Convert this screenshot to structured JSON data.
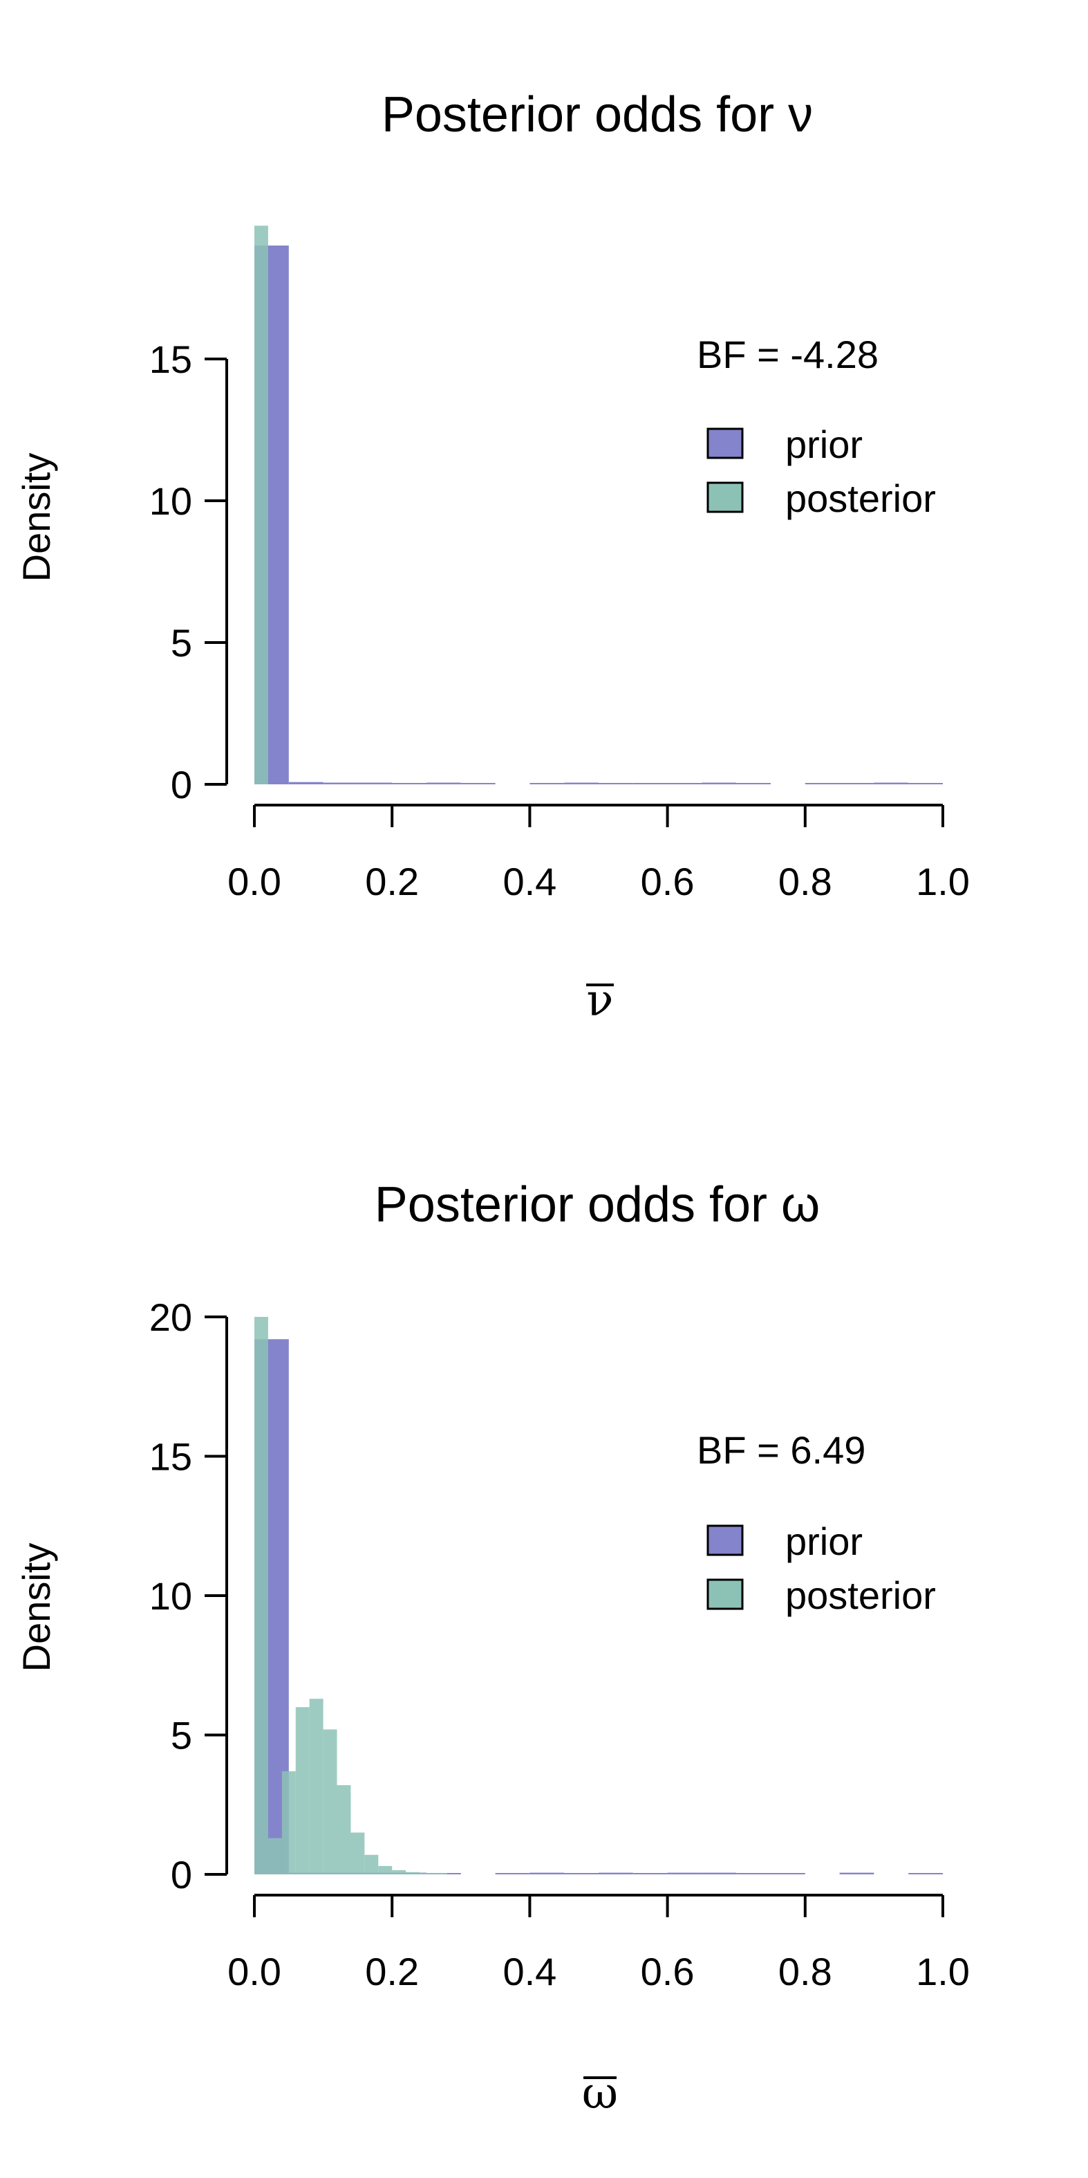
{
  "colors": {
    "prior": "#8484CC",
    "posterior": "#8CC2B6",
    "axis": "#000000"
  },
  "chart_data": [
    {
      "type": "bar",
      "title": "Posterior odds for ν",
      "ylabel": "Density",
      "xlabel": "ν",
      "xlabel_overline": true,
      "xlim": [
        0,
        1
      ],
      "ylim": [
        0,
        19.6
      ],
      "xticks": [
        0.0,
        0.2,
        0.4,
        0.6,
        0.8,
        1.0
      ],
      "xtick_labels": [
        "0.0",
        "0.2",
        "0.4",
        "0.6",
        "0.8",
        "1.0"
      ],
      "yticks": [
        0,
        5,
        10,
        15
      ],
      "ytick_labels": [
        "0",
        "5",
        "10",
        "15"
      ],
      "annotation": "BF = -4.28",
      "legend": [
        "prior",
        "posterior"
      ],
      "legend_position": "top-right",
      "bin_width": 0.05,
      "series": [
        {
          "name": "prior",
          "bins": [
            {
              "x0": 0.0,
              "x1": 0.05,
              "y": 19.0
            },
            {
              "x0": 0.05,
              "x1": 0.1,
              "y": 0.08
            },
            {
              "x0": 0.1,
              "x1": 0.15,
              "y": 0.06
            },
            {
              "x0": 0.15,
              "x1": 0.2,
              "y": 0.06
            },
            {
              "x0": 0.2,
              "x1": 0.25,
              "y": 0.04
            },
            {
              "x0": 0.25,
              "x1": 0.3,
              "y": 0.06
            },
            {
              "x0": 0.3,
              "x1": 0.35,
              "y": 0.04
            },
            {
              "x0": 0.4,
              "x1": 0.45,
              "y": 0.04
            },
            {
              "x0": 0.45,
              "x1": 0.5,
              "y": 0.06
            },
            {
              "x0": 0.5,
              "x1": 0.55,
              "y": 0.04
            },
            {
              "x0": 0.55,
              "x1": 0.6,
              "y": 0.04
            },
            {
              "x0": 0.6,
              "x1": 0.65,
              "y": 0.04
            },
            {
              "x0": 0.65,
              "x1": 0.7,
              "y": 0.06
            },
            {
              "x0": 0.7,
              "x1": 0.75,
              "y": 0.04
            },
            {
              "x0": 0.8,
              "x1": 0.85,
              "y": 0.04
            },
            {
              "x0": 0.85,
              "x1": 0.9,
              "y": 0.04
            },
            {
              "x0": 0.9,
              "x1": 0.95,
              "y": 0.06
            },
            {
              "x0": 0.95,
              "x1": 1.0,
              "y": 0.04
            }
          ]
        },
        {
          "name": "posterior",
          "bins": [
            {
              "x0": 0.0,
              "x1": 0.02,
              "y": 19.7
            }
          ]
        }
      ]
    },
    {
      "type": "bar",
      "title": "Posterior odds for ω",
      "ylabel": "Density",
      "xlabel": "ω",
      "xlabel_overline": true,
      "xlim": [
        0,
        1
      ],
      "ylim": [
        0,
        20
      ],
      "xticks": [
        0.0,
        0.2,
        0.4,
        0.6,
        0.8,
        1.0
      ],
      "xtick_labels": [
        "0.0",
        "0.2",
        "0.4",
        "0.6",
        "0.8",
        "1.0"
      ],
      "yticks": [
        0,
        5,
        10,
        15,
        20
      ],
      "ytick_labels": [
        "0",
        "5",
        "10",
        "15",
        "20"
      ],
      "annotation": "BF = 6.49",
      "legend": [
        "prior",
        "posterior"
      ],
      "legend_position": "top-right",
      "bin_width": 0.05,
      "series": [
        {
          "name": "prior",
          "bins": [
            {
              "x0": 0.0,
              "x1": 0.05,
              "y": 19.2
            },
            {
              "x0": 0.05,
              "x1": 0.1,
              "y": 0.06
            },
            {
              "x0": 0.1,
              "x1": 0.15,
              "y": 0.06
            },
            {
              "x0": 0.15,
              "x1": 0.2,
              "y": 0.06
            },
            {
              "x0": 0.2,
              "x1": 0.25,
              "y": 0.06
            },
            {
              "x0": 0.25,
              "x1": 0.3,
              "y": 0.04
            },
            {
              "x0": 0.35,
              "x1": 0.4,
              "y": 0.04
            },
            {
              "x0": 0.4,
              "x1": 0.45,
              "y": 0.06
            },
            {
              "x0": 0.45,
              "x1": 0.5,
              "y": 0.04
            },
            {
              "x0": 0.5,
              "x1": 0.55,
              "y": 0.06
            },
            {
              "x0": 0.55,
              "x1": 0.6,
              "y": 0.04
            },
            {
              "x0": 0.6,
              "x1": 0.65,
              "y": 0.06
            },
            {
              "x0": 0.65,
              "x1": 0.7,
              "y": 0.06
            },
            {
              "x0": 0.7,
              "x1": 0.75,
              "y": 0.04
            },
            {
              "x0": 0.75,
              "x1": 0.8,
              "y": 0.04
            },
            {
              "x0": 0.85,
              "x1": 0.9,
              "y": 0.06
            },
            {
              "x0": 0.95,
              "x1": 1.0,
              "y": 0.04
            }
          ]
        },
        {
          "name": "posterior",
          "bins": [
            {
              "x0": 0.0,
              "x1": 0.02,
              "y": 20.0
            },
            {
              "x0": 0.02,
              "x1": 0.04,
              "y": 1.3
            },
            {
              "x0": 0.04,
              "x1": 0.06,
              "y": 3.7
            },
            {
              "x0": 0.06,
              "x1": 0.08,
              "y": 6.0
            },
            {
              "x0": 0.08,
              "x1": 0.1,
              "y": 6.3
            },
            {
              "x0": 0.1,
              "x1": 0.12,
              "y": 5.2
            },
            {
              "x0": 0.12,
              "x1": 0.14,
              "y": 3.2
            },
            {
              "x0": 0.14,
              "x1": 0.16,
              "y": 1.5
            },
            {
              "x0": 0.16,
              "x1": 0.18,
              "y": 0.7
            },
            {
              "x0": 0.18,
              "x1": 0.2,
              "y": 0.3
            },
            {
              "x0": 0.2,
              "x1": 0.22,
              "y": 0.15
            },
            {
              "x0": 0.22,
              "x1": 0.24,
              "y": 0.08
            },
            {
              "x0": 0.24,
              "x1": 0.26,
              "y": 0.05
            },
            {
              "x0": 0.26,
              "x1": 0.28,
              "y": 0.03
            }
          ]
        }
      ]
    }
  ]
}
